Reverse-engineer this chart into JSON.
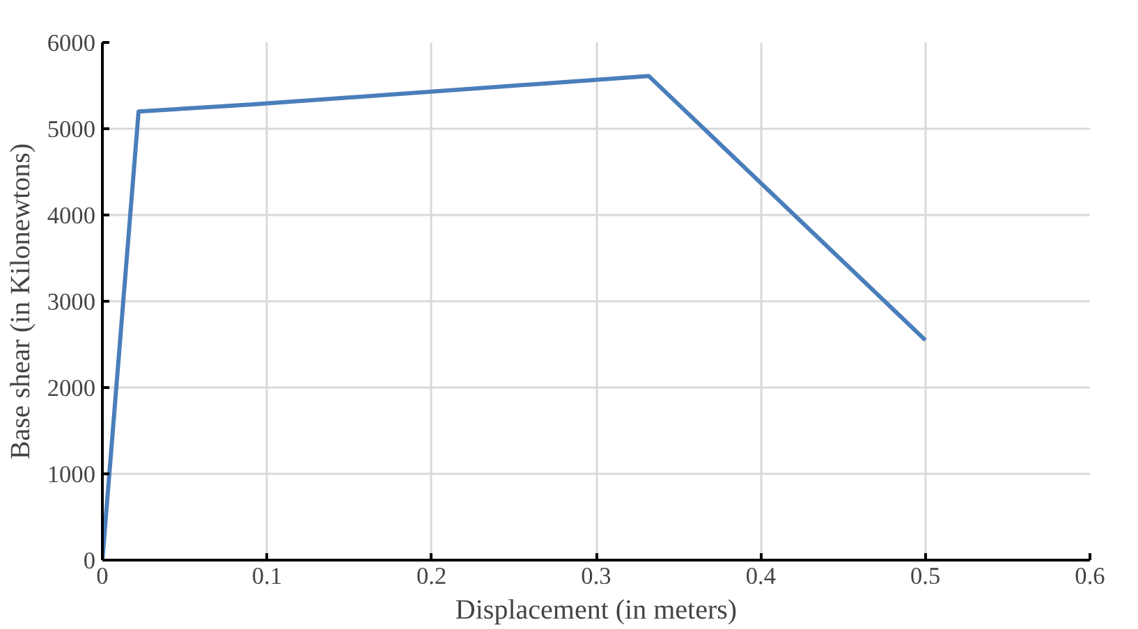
{
  "chart_data": {
    "type": "line",
    "xlabel": "Displacement (in meters)",
    "ylabel": "Base shear (in Kilonewtons)",
    "series": [
      {
        "color": "#4a7ebb",
        "x": [
          0,
          0.022,
          0.09,
          0.332,
          0.5
        ],
        "values": [
          0,
          5200,
          5280,
          5610,
          2550
        ]
      }
    ],
    "xlim": [
      0,
      0.6
    ],
    "xticks": [
      0,
      0.1,
      0.2,
      0.3,
      0.4,
      0.5,
      0.6
    ],
    "ylim": [
      0,
      6000
    ],
    "yticks": [
      0,
      1000,
      2000,
      3000,
      4000,
      5000,
      6000
    ],
    "grid": true
  }
}
